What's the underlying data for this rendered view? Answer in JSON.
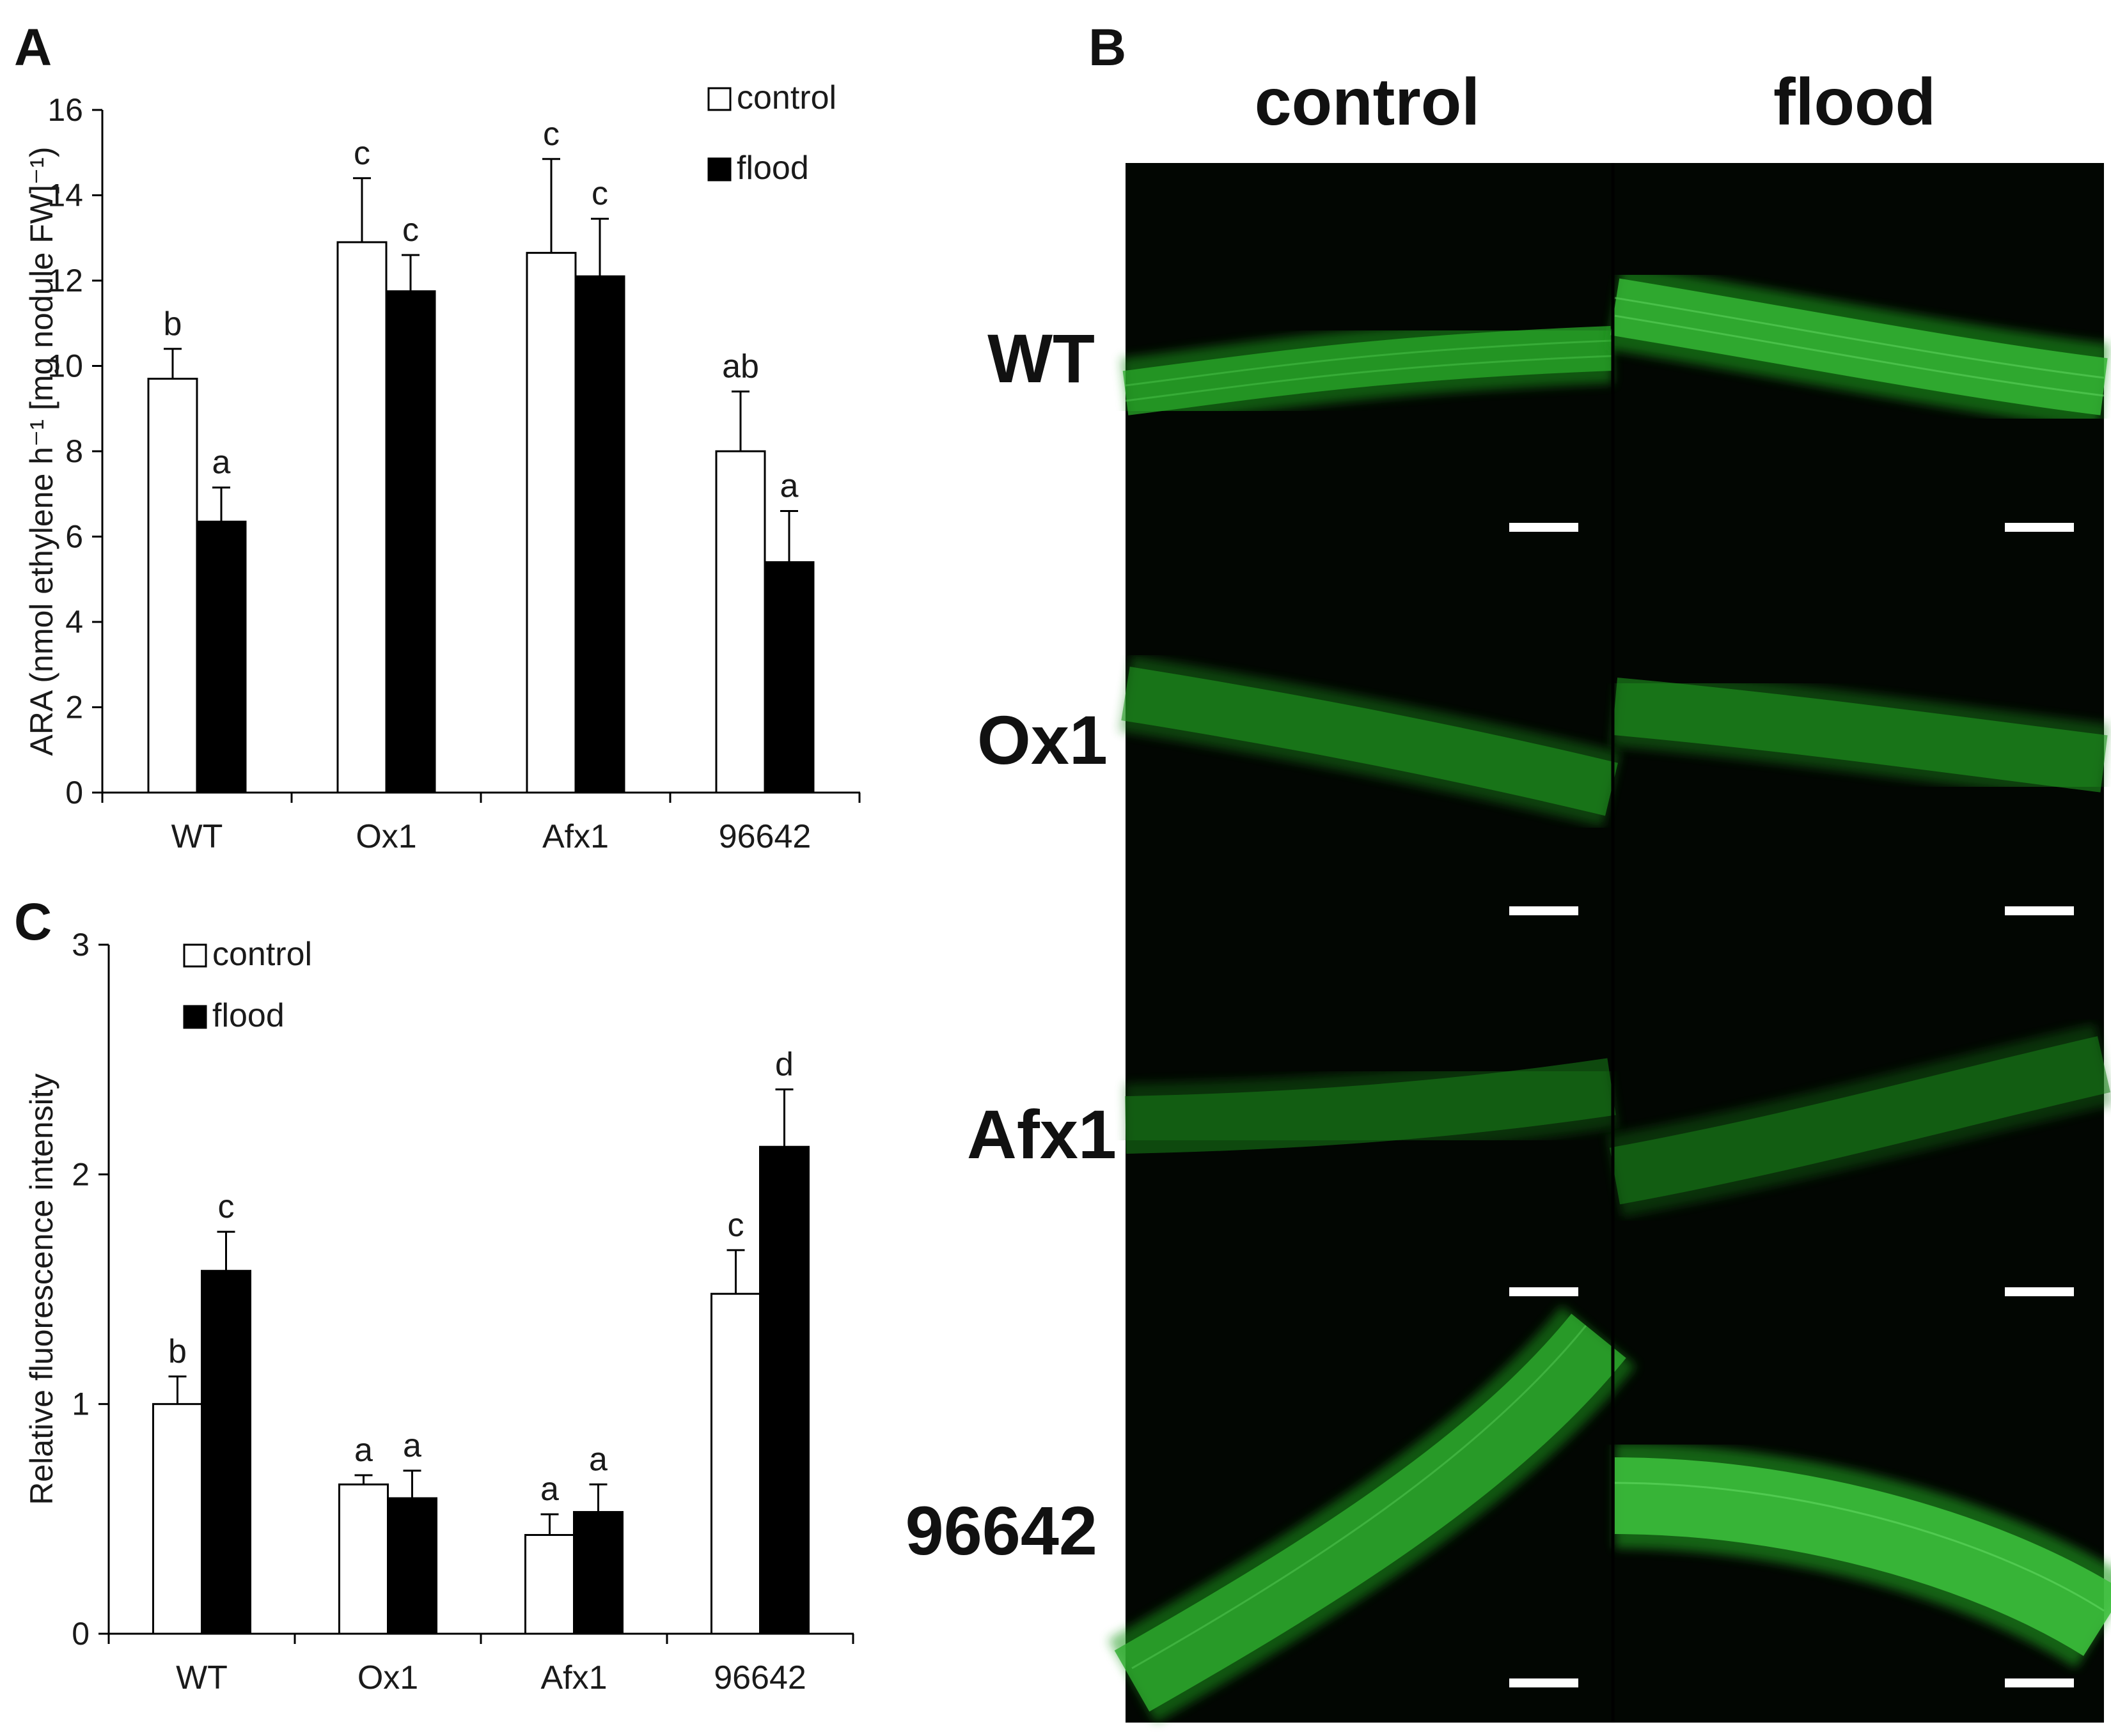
{
  "panels": {
    "A": {
      "letter": "A"
    },
    "B": {
      "letter": "B",
      "columns": [
        "control",
        "flood"
      ],
      "rows": [
        "WT",
        "Ox1",
        "Afx1",
        "96642"
      ],
      "colors": {
        "background": "#020602",
        "fluorescence": "#1f9a1f"
      }
    },
    "C": {
      "letter": "C"
    }
  },
  "chart_data": [
    {
      "panel": "A",
      "type": "bar",
      "title": "",
      "xlabel": "",
      "ylabel": "ARA (nmol ethylene h⁻¹ [mg nodule FW]⁻¹)",
      "ylim": [
        0,
        16
      ],
      "yticks": [
        0,
        2,
        4,
        6,
        8,
        10,
        12,
        14,
        16
      ],
      "categories": [
        "WT",
        "Ox1",
        "Afx1",
        "96642"
      ],
      "legend_position": "top-right",
      "grid": false,
      "series": [
        {
          "name": "control",
          "color": "#ffffff",
          "values": [
            9.7,
            12.9,
            12.65,
            8.0
          ],
          "errors": [
            0.7,
            1.5,
            2.2,
            1.4
          ],
          "labels": [
            "b",
            "c",
            "c",
            "ab"
          ]
        },
        {
          "name": "flood",
          "color": "#000000",
          "values": [
            6.35,
            11.75,
            12.1,
            5.4
          ],
          "errors": [
            0.8,
            0.85,
            1.35,
            1.2
          ],
          "labels": [
            "a",
            "c",
            "c",
            "a"
          ]
        }
      ]
    },
    {
      "panel": "C",
      "type": "bar",
      "title": "",
      "xlabel": "",
      "ylabel": "Relative fluorescence intensity",
      "ylim": [
        0,
        3
      ],
      "yticks": [
        0,
        1,
        2,
        3
      ],
      "categories": [
        "WT",
        "Ox1",
        "Afx1",
        "96642"
      ],
      "legend_position": "top-left",
      "grid": false,
      "series": [
        {
          "name": "control",
          "color": "#ffffff",
          "values": [
            1.0,
            0.65,
            0.43,
            1.48
          ],
          "errors": [
            0.12,
            0.04,
            0.09,
            0.19
          ],
          "labels": [
            "b",
            "a",
            "a",
            "c"
          ]
        },
        {
          "name": "flood",
          "color": "#000000",
          "values": [
            1.58,
            0.59,
            0.53,
            2.12
          ],
          "errors": [
            0.17,
            0.12,
            0.12,
            0.25
          ],
          "labels": [
            "c",
            "a",
            "a",
            "d"
          ]
        }
      ]
    }
  ]
}
